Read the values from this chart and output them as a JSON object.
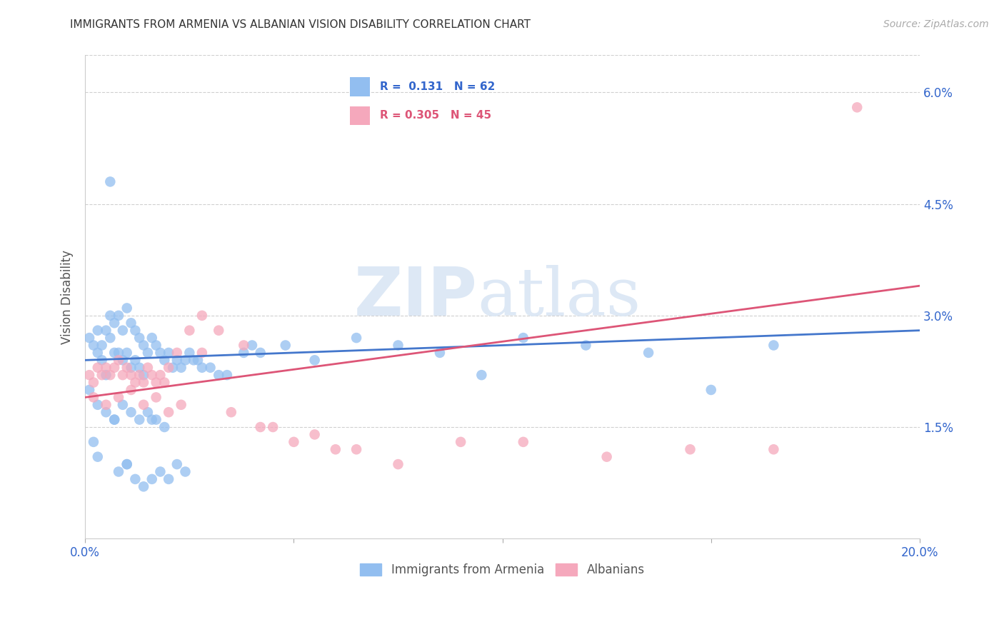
{
  "title": "IMMIGRANTS FROM ARMENIA VS ALBANIAN VISION DISABILITY CORRELATION CHART",
  "source": "Source: ZipAtlas.com",
  "ylabel": "Vision Disability",
  "xlim": [
    0.0,
    0.2
  ],
  "ylim": [
    0.0,
    0.065
  ],
  "yticks": [
    0.015,
    0.03,
    0.045,
    0.06
  ],
  "ytick_labels": [
    "1.5%",
    "3.0%",
    "4.5%",
    "6.0%"
  ],
  "xticks": [
    0.0,
    0.05,
    0.1,
    0.15,
    0.2
  ],
  "xtick_labels": [
    "0.0%",
    "",
    "",
    "",
    "20.0%"
  ],
  "watermark_zip": "ZIP",
  "watermark_atlas": "atlas",
  "blue_color": "#92BEF0",
  "pink_color": "#F5A8BC",
  "blue_line_color": "#4477CC",
  "pink_line_color": "#DD5577",
  "legend_R1": "0.131",
  "legend_N1": "62",
  "legend_R2": "0.305",
  "legend_N2": "45",
  "blue_scatter_x": [
    0.001,
    0.002,
    0.003,
    0.003,
    0.004,
    0.004,
    0.005,
    0.005,
    0.006,
    0.006,
    0.007,
    0.007,
    0.008,
    0.008,
    0.009,
    0.009,
    0.01,
    0.01,
    0.011,
    0.011,
    0.012,
    0.012,
    0.013,
    0.013,
    0.014,
    0.014,
    0.015,
    0.016,
    0.017,
    0.018,
    0.019,
    0.02,
    0.021,
    0.022,
    0.023,
    0.024,
    0.025,
    0.026,
    0.027,
    0.028,
    0.03,
    0.032,
    0.034,
    0.038,
    0.042,
    0.048,
    0.055,
    0.065,
    0.075,
    0.085,
    0.095,
    0.105,
    0.12,
    0.135,
    0.15,
    0.165,
    0.04,
    0.002,
    0.003,
    0.007,
    0.01,
    0.016
  ],
  "blue_scatter_y": [
    0.027,
    0.026,
    0.028,
    0.025,
    0.026,
    0.024,
    0.028,
    0.022,
    0.03,
    0.027,
    0.029,
    0.025,
    0.03,
    0.025,
    0.028,
    0.024,
    0.031,
    0.025,
    0.029,
    0.023,
    0.028,
    0.024,
    0.027,
    0.023,
    0.026,
    0.022,
    0.025,
    0.027,
    0.026,
    0.025,
    0.024,
    0.025,
    0.023,
    0.024,
    0.023,
    0.024,
    0.025,
    0.024,
    0.024,
    0.023,
    0.023,
    0.022,
    0.022,
    0.025,
    0.025,
    0.026,
    0.024,
    0.027,
    0.026,
    0.025,
    0.022,
    0.027,
    0.026,
    0.025,
    0.02,
    0.026,
    0.026,
    0.013,
    0.011,
    0.016,
    0.01,
    0.016
  ],
  "blue_scatter_x2": [
    0.001,
    0.003,
    0.005,
    0.007,
    0.009,
    0.011,
    0.013,
    0.015,
    0.017,
    0.019,
    0.008,
    0.01,
    0.012,
    0.014,
    0.016,
    0.018,
    0.02,
    0.022,
    0.024,
    0.006
  ],
  "blue_scatter_y2": [
    0.02,
    0.018,
    0.017,
    0.016,
    0.018,
    0.017,
    0.016,
    0.017,
    0.016,
    0.015,
    0.009,
    0.01,
    0.008,
    0.007,
    0.008,
    0.009,
    0.008,
    0.01,
    0.009,
    0.048
  ],
  "pink_scatter_x": [
    0.001,
    0.002,
    0.003,
    0.004,
    0.005,
    0.006,
    0.007,
    0.008,
    0.009,
    0.01,
    0.011,
    0.012,
    0.013,
    0.014,
    0.015,
    0.016,
    0.017,
    0.018,
    0.019,
    0.02,
    0.022,
    0.025,
    0.028,
    0.032,
    0.038,
    0.045,
    0.055,
    0.065,
    0.075,
    0.09,
    0.105,
    0.125,
    0.145,
    0.165,
    0.185
  ],
  "pink_scatter_y": [
    0.022,
    0.021,
    0.023,
    0.022,
    0.023,
    0.022,
    0.023,
    0.024,
    0.022,
    0.023,
    0.022,
    0.021,
    0.022,
    0.021,
    0.023,
    0.022,
    0.021,
    0.022,
    0.021,
    0.023,
    0.025,
    0.028,
    0.03,
    0.028,
    0.026,
    0.015,
    0.014,
    0.012,
    0.01,
    0.013,
    0.013,
    0.011,
    0.012,
    0.012,
    0.058
  ],
  "pink_scatter_x2": [
    0.002,
    0.005,
    0.008,
    0.011,
    0.014,
    0.017,
    0.02,
    0.023,
    0.028,
    0.035,
    0.042,
    0.05,
    0.06
  ],
  "pink_scatter_y2": [
    0.019,
    0.018,
    0.019,
    0.02,
    0.018,
    0.019,
    0.017,
    0.018,
    0.025,
    0.017,
    0.015,
    0.013,
    0.012
  ],
  "blue_line_x": [
    0.0,
    0.2
  ],
  "blue_line_y": [
    0.024,
    0.028
  ],
  "pink_line_x": [
    0.0,
    0.2
  ],
  "pink_line_y": [
    0.019,
    0.034
  ]
}
